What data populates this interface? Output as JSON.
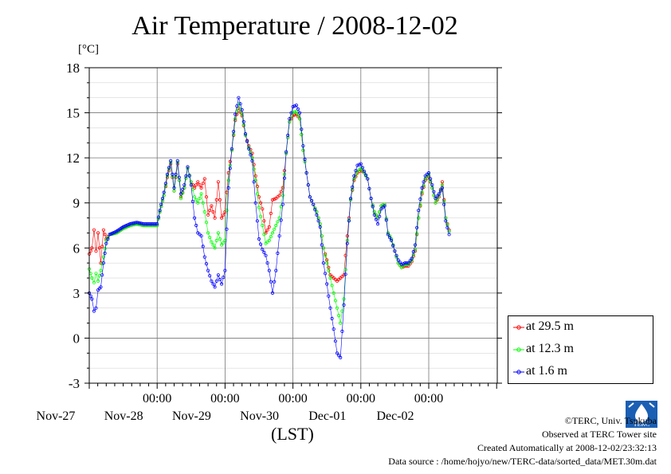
{
  "title": "Air Temperature / 2008-12-02",
  "unit_label": "[°C]",
  "xaxis_title": "(LST)",
  "credits": {
    "line1": "©TERC, Univ. Tsukuba",
    "line2": "Observed at TERC Tower site",
    "line3": "Created Automatically at 2008-12-02/23:32:13",
    "line4": "Data source : /home/hojyo/new/TERC-data/sorted_data/MET.30m.dat"
  },
  "logo_text": "TERC",
  "chart_data": {
    "type": "line",
    "title": "Air Temperature / 2008-12-02",
    "ylabel": "[°C]",
    "xlabel": "(LST)",
    "ylim": [
      -3,
      18
    ],
    "yticks": [
      -3,
      0,
      3,
      6,
      9,
      12,
      15,
      18
    ],
    "xlim": [
      0,
      6
    ],
    "x_unit": "days since Nov-27 00:00 (LST)",
    "xticks": [
      {
        "x": 1,
        "label": "00:00",
        "sublabel": "Nov-28"
      },
      {
        "x": 2,
        "label": "00:00",
        "sublabel": "Nov-29"
      },
      {
        "x": 3,
        "label": "00:00",
        "sublabel": "Nov-30"
      },
      {
        "x": 4,
        "label": "00:00",
        "sublabel": "Dec-01"
      },
      {
        "x": 5,
        "label": "00:00",
        "sublabel": "Dec-02"
      }
    ],
    "first_day_label": "Nov-27",
    "grid": true,
    "legend_position": "right-bottom",
    "series": [
      {
        "name": "at 29.5 m",
        "color": "#ff0000",
        "points": [
          [
            0,
            5.6
          ],
          [
            0.04,
            6.0
          ],
          [
            0.07,
            7.2
          ],
          [
            0.1,
            5.8
          ],
          [
            0.13,
            7.0
          ],
          [
            0.17,
            5.0
          ],
          [
            0.21,
            7.2
          ],
          [
            0.25,
            6.6
          ],
          [
            0.3,
            6.9
          ],
          [
            0.4,
            7.0
          ],
          [
            0.5,
            7.3
          ],
          [
            0.6,
            7.5
          ],
          [
            0.7,
            7.6
          ],
          [
            0.8,
            7.5
          ],
          [
            1.0,
            7.5
          ],
          [
            1.04,
            8.4
          ],
          [
            1.1,
            9.5
          ],
          [
            1.15,
            10.7
          ],
          [
            1.2,
            11.6
          ],
          [
            1.25,
            9.8
          ],
          [
            1.3,
            11.6
          ],
          [
            1.35,
            9.4
          ],
          [
            1.4,
            10.0
          ],
          [
            1.45,
            11.3
          ],
          [
            1.5,
            10.4
          ],
          [
            1.55,
            10.0
          ],
          [
            1.6,
            10.4
          ],
          [
            1.65,
            10.0
          ],
          [
            1.7,
            10.6
          ],
          [
            1.75,
            8.2
          ],
          [
            1.8,
            8.8
          ],
          [
            1.85,
            8.0
          ],
          [
            1.9,
            10.4
          ],
          [
            1.95,
            8.0
          ],
          [
            2.0,
            8.4
          ],
          [
            2.05,
            11.0
          ],
          [
            2.1,
            12.5
          ],
          [
            2.15,
            14.5
          ],
          [
            2.2,
            15.3
          ],
          [
            2.25,
            14.8
          ],
          [
            2.3,
            13.5
          ],
          [
            2.35,
            12.8
          ],
          [
            2.4,
            12.3
          ],
          [
            2.45,
            10.8
          ],
          [
            2.5,
            9.4
          ],
          [
            2.55,
            8.6
          ],
          [
            2.6,
            7.0
          ],
          [
            2.65,
            7.4
          ],
          [
            2.7,
            9.2
          ],
          [
            2.75,
            9.3
          ],
          [
            2.8,
            9.5
          ],
          [
            2.85,
            10.0
          ],
          [
            2.9,
            12.3
          ],
          [
            2.95,
            14.4
          ],
          [
            3.0,
            14.8
          ],
          [
            3.05,
            14.9
          ],
          [
            3.1,
            14.6
          ],
          [
            3.15,
            12.5
          ],
          [
            3.2,
            11.0
          ],
          [
            3.25,
            9.4
          ],
          [
            3.3,
            8.9
          ],
          [
            3.35,
            8.4
          ],
          [
            3.4,
            7.6
          ],
          [
            3.45,
            6.0
          ],
          [
            3.5,
            5.2
          ],
          [
            3.55,
            4.2
          ],
          [
            3.6,
            4.0
          ],
          [
            3.65,
            3.8
          ],
          [
            3.7,
            4.0
          ],
          [
            3.75,
            4.2
          ],
          [
            3.8,
            6.8
          ],
          [
            3.85,
            9.2
          ],
          [
            3.9,
            10.5
          ],
          [
            3.95,
            11.0
          ],
          [
            4.0,
            11.2
          ],
          [
            4.05,
            11.0
          ],
          [
            4.1,
            10.6
          ],
          [
            4.15,
            9.3
          ],
          [
            4.2,
            8.4
          ],
          [
            4.25,
            8.0
          ],
          [
            4.3,
            8.8
          ],
          [
            4.35,
            8.9
          ],
          [
            4.4,
            7.0
          ],
          [
            4.45,
            6.6
          ],
          [
            4.5,
            5.8
          ],
          [
            4.55,
            5.0
          ],
          [
            4.6,
            4.7
          ],
          [
            4.65,
            4.8
          ],
          [
            4.7,
            4.8
          ],
          [
            4.75,
            5.1
          ],
          [
            4.8,
            5.8
          ],
          [
            4.85,
            8.0
          ],
          [
            4.9,
            9.6
          ],
          [
            4.95,
            10.5
          ],
          [
            5.0,
            10.8
          ],
          [
            5.05,
            10.0
          ],
          [
            5.1,
            9.0
          ],
          [
            5.15,
            9.4
          ],
          [
            5.2,
            10.4
          ],
          [
            5.25,
            8.0
          ],
          [
            5.3,
            7.2
          ]
        ]
      },
      {
        "name": "at 12.3 m",
        "color": "#00ff00",
        "points": [
          [
            0,
            4.6
          ],
          [
            0.04,
            4.0
          ],
          [
            0.07,
            3.7
          ],
          [
            0.1,
            4.3
          ],
          [
            0.13,
            3.8
          ],
          [
            0.17,
            4.5
          ],
          [
            0.21,
            5.4
          ],
          [
            0.25,
            6.5
          ],
          [
            0.3,
            6.9
          ],
          [
            0.4,
            7.0
          ],
          [
            0.5,
            7.3
          ],
          [
            0.6,
            7.5
          ],
          [
            0.7,
            7.6
          ],
          [
            0.8,
            7.5
          ],
          [
            1.0,
            7.5
          ],
          [
            1.04,
            8.4
          ],
          [
            1.1,
            9.5
          ],
          [
            1.15,
            10.8
          ],
          [
            1.2,
            11.7
          ],
          [
            1.25,
            9.8
          ],
          [
            1.3,
            11.7
          ],
          [
            1.35,
            9.3
          ],
          [
            1.4,
            10.0
          ],
          [
            1.45,
            11.3
          ],
          [
            1.5,
            10.4
          ],
          [
            1.55,
            9.4
          ],
          [
            1.6,
            9.0
          ],
          [
            1.65,
            9.6
          ],
          [
            1.7,
            8.4
          ],
          [
            1.75,
            7.0
          ],
          [
            1.8,
            6.4
          ],
          [
            1.85,
            6.0
          ],
          [
            1.9,
            7.0
          ],
          [
            1.95,
            6.2
          ],
          [
            2.0,
            6.5
          ],
          [
            2.05,
            10.5
          ],
          [
            2.1,
            12.5
          ],
          [
            2.15,
            14.6
          ],
          [
            2.2,
            15.6
          ],
          [
            2.25,
            14.9
          ],
          [
            2.3,
            13.5
          ],
          [
            2.35,
            12.7
          ],
          [
            2.4,
            12.0
          ],
          [
            2.45,
            10.5
          ],
          [
            2.5,
            8.7
          ],
          [
            2.55,
            7.5
          ],
          [
            2.6,
            6.3
          ],
          [
            2.65,
            6.5
          ],
          [
            2.7,
            7.0
          ],
          [
            2.75,
            7.5
          ],
          [
            2.8,
            8.0
          ],
          [
            2.85,
            9.5
          ],
          [
            2.9,
            12.3
          ],
          [
            2.95,
            14.4
          ],
          [
            3.0,
            15.0
          ],
          [
            3.05,
            15.1
          ],
          [
            3.1,
            14.6
          ],
          [
            3.15,
            12.5
          ],
          [
            3.2,
            11.0
          ],
          [
            3.25,
            9.4
          ],
          [
            3.3,
            8.9
          ],
          [
            3.35,
            8.4
          ],
          [
            3.4,
            7.6
          ],
          [
            3.45,
            6.0
          ],
          [
            3.5,
            5.0
          ],
          [
            3.55,
            4.0
          ],
          [
            3.6,
            3.0
          ],
          [
            3.65,
            2.0
          ],
          [
            3.7,
            1.0
          ],
          [
            3.75,
            2.6
          ],
          [
            3.8,
            6.5
          ],
          [
            3.85,
            9.2
          ],
          [
            3.9,
            10.6
          ],
          [
            3.95,
            11.1
          ],
          [
            4.0,
            11.3
          ],
          [
            4.05,
            11.0
          ],
          [
            4.1,
            10.6
          ],
          [
            4.15,
            9.3
          ],
          [
            4.2,
            8.4
          ],
          [
            4.25,
            8.0
          ],
          [
            4.3,
            8.8
          ],
          [
            4.35,
            8.9
          ],
          [
            4.4,
            7.0
          ],
          [
            4.45,
            6.6
          ],
          [
            4.5,
            5.8
          ],
          [
            4.55,
            5.0
          ],
          [
            4.6,
            4.7
          ],
          [
            4.65,
            4.9
          ],
          [
            4.7,
            4.9
          ],
          [
            4.75,
            5.2
          ],
          [
            4.8,
            5.9
          ],
          [
            4.85,
            8.0
          ],
          [
            4.9,
            9.7
          ],
          [
            4.95,
            10.6
          ],
          [
            5.0,
            10.9
          ],
          [
            5.05,
            10.0
          ],
          [
            5.1,
            9.0
          ],
          [
            5.15,
            9.5
          ],
          [
            5.2,
            10.2
          ],
          [
            5.25,
            8.0
          ],
          [
            5.3,
            7.1
          ]
        ]
      },
      {
        "name": "at 1.6 m",
        "color": "#0000ff",
        "points": [
          [
            0,
            3.0
          ],
          [
            0.04,
            2.6
          ],
          [
            0.07,
            1.8
          ],
          [
            0.1,
            2.0
          ],
          [
            0.13,
            3.2
          ],
          [
            0.17,
            3.4
          ],
          [
            0.21,
            5.0
          ],
          [
            0.25,
            6.3
          ],
          [
            0.3,
            6.9
          ],
          [
            0.4,
            7.1
          ],
          [
            0.5,
            7.4
          ],
          [
            0.6,
            7.6
          ],
          [
            0.7,
            7.7
          ],
          [
            0.8,
            7.6
          ],
          [
            1.0,
            7.6
          ],
          [
            1.04,
            8.5
          ],
          [
            1.1,
            9.7
          ],
          [
            1.15,
            10.9
          ],
          [
            1.2,
            11.8
          ],
          [
            1.25,
            10.0
          ],
          [
            1.3,
            11.8
          ],
          [
            1.35,
            9.6
          ],
          [
            1.4,
            10.2
          ],
          [
            1.45,
            11.4
          ],
          [
            1.5,
            10.2
          ],
          [
            1.55,
            8.0
          ],
          [
            1.6,
            7.0
          ],
          [
            1.65,
            6.8
          ],
          [
            1.7,
            5.4
          ],
          [
            1.75,
            4.5
          ],
          [
            1.8,
            3.8
          ],
          [
            1.85,
            3.4
          ],
          [
            1.9,
            4.2
          ],
          [
            1.95,
            3.6
          ],
          [
            2.0,
            4.5
          ],
          [
            2.05,
            10.0
          ],
          [
            2.1,
            12.6
          ],
          [
            2.15,
            14.9
          ],
          [
            2.2,
            16.0
          ],
          [
            2.25,
            15.2
          ],
          [
            2.3,
            13.6
          ],
          [
            2.35,
            12.6
          ],
          [
            2.4,
            11.8
          ],
          [
            2.45,
            9.0
          ],
          [
            2.5,
            6.6
          ],
          [
            2.55,
            5.9
          ],
          [
            2.6,
            5.5
          ],
          [
            2.65,
            4.5
          ],
          [
            2.7,
            3.0
          ],
          [
            2.75,
            4.5
          ],
          [
            2.8,
            6.8
          ],
          [
            2.85,
            8.9
          ],
          [
            2.9,
            12.4
          ],
          [
            2.95,
            14.6
          ],
          [
            3.0,
            15.4
          ],
          [
            3.05,
            15.5
          ],
          [
            3.1,
            15.0
          ],
          [
            3.15,
            12.8
          ],
          [
            3.2,
            11.0
          ],
          [
            3.25,
            9.4
          ],
          [
            3.3,
            8.9
          ],
          [
            3.35,
            8.2
          ],
          [
            3.4,
            7.4
          ],
          [
            3.45,
            5.0
          ],
          [
            3.5,
            3.6
          ],
          [
            3.55,
            2.0
          ],
          [
            3.6,
            0.6
          ],
          [
            3.65,
            -1.0
          ],
          [
            3.7,
            -1.3
          ],
          [
            3.75,
            2.2
          ],
          [
            3.8,
            6.3
          ],
          [
            3.85,
            9.3
          ],
          [
            3.9,
            10.8
          ],
          [
            3.95,
            11.5
          ],
          [
            4.0,
            11.6
          ],
          [
            4.05,
            11.1
          ],
          [
            4.1,
            10.6
          ],
          [
            4.15,
            9.3
          ],
          [
            4.2,
            8.2
          ],
          [
            4.25,
            7.6
          ],
          [
            4.3,
            8.6
          ],
          [
            4.35,
            8.8
          ],
          [
            4.4,
            6.9
          ],
          [
            4.45,
            6.5
          ],
          [
            4.5,
            5.8
          ],
          [
            4.55,
            5.2
          ],
          [
            4.6,
            4.9
          ],
          [
            4.65,
            5.0
          ],
          [
            4.7,
            5.0
          ],
          [
            4.75,
            5.3
          ],
          [
            4.8,
            6.2
          ],
          [
            4.85,
            8.5
          ],
          [
            4.9,
            10.0
          ],
          [
            4.95,
            10.8
          ],
          [
            5.0,
            11.0
          ],
          [
            5.05,
            10.2
          ],
          [
            5.1,
            9.3
          ],
          [
            5.15,
            9.6
          ],
          [
            5.2,
            10.0
          ],
          [
            5.25,
            7.8
          ],
          [
            5.3,
            6.9
          ]
        ]
      }
    ]
  }
}
